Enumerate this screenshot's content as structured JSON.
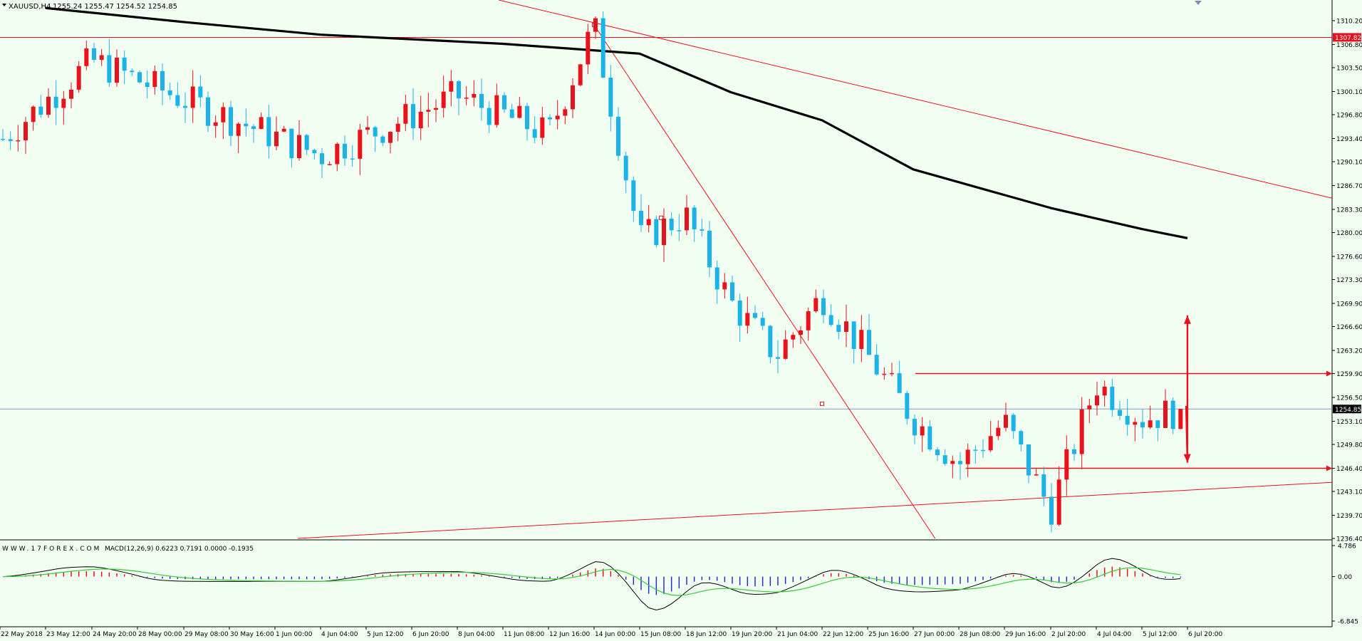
{
  "header": {
    "symbol": "XAUUSD,H4",
    "ohlc": "1255.24 1255.47 1254.52 1254.85"
  },
  "macd_header": {
    "watermark": "WWW.17FOREX.COM",
    "label": "MACD(12,26,9) 0.6223 0.7191 0.0000 -0.1935"
  },
  "colors": {
    "background": "#f3fef3",
    "bull": "#e8121c",
    "bear": "#1ab4ea",
    "ma": "#000000",
    "trend": "#e8121c",
    "current_price_line": "#8a9bc0",
    "signal": "#33cc33"
  },
  "chart_data": [
    {
      "type": "candlestick",
      "symbol": "XAUUSD",
      "timeframe": "H4",
      "ylim": [
        1236.4,
        1313.0
      ],
      "y_ticks": [
        "1310.20",
        "1306.80",
        "1303.50",
        "1300.10",
        "1296.80",
        "1293.40",
        "1290.10",
        "1286.70",
        "1283.30",
        "1280.00",
        "1276.60",
        "1273.30",
        "1269.90",
        "1266.60",
        "1263.20",
        "1259.90",
        "1256.50",
        "1253.10",
        "1249.80",
        "1246.40",
        "1243.10",
        "1239.70",
        "1236.40"
      ],
      "y_tick_values": [
        1310.2,
        1306.8,
        1303.5,
        1300.1,
        1296.8,
        1293.4,
        1290.1,
        1286.7,
        1283.3,
        1280.0,
        1276.6,
        1273.3,
        1269.9,
        1266.6,
        1263.2,
        1259.9,
        1256.5,
        1253.1,
        1249.8,
        1246.4,
        1243.1,
        1239.7,
        1236.4
      ],
      "x_ticks": [
        "22 May 2018",
        "23 May 12:00",
        "24 May 20:00",
        "28 May 00:00",
        "29 May 08:00",
        "30 May 16:00",
        "1 Jun 00:00",
        "4 Jun 04:00",
        "5 Jun 12:00",
        "6 Jun 20:00",
        "8 Jun 04:00",
        "11 Jun 08:00",
        "12 Jun 16:00",
        "14 Jun 00:00",
        "15 Jun 08:00",
        "18 Jun 12:00",
        "19 Jun 20:00",
        "21 Jun 04:00",
        "22 Jun 12:00",
        "25 Jun 16:00",
        "27 Jun 00:00",
        "28 Jun 08:00",
        "29 Jun 16:00",
        "2 Jul 20:00",
        "4 Jul 04:00",
        "5 Jul 12:00",
        "6 Jul 20:00"
      ],
      "price_labels": {
        "resistance": {
          "text": "1307.82",
          "value": 1307.82
        },
        "current": {
          "text": "1254.85",
          "value": 1254.85
        }
      },
      "key_points": [
        {
          "x": "22 May 2018",
          "y": 1293.0
        },
        {
          "x": "24 May 20:00",
          "y": 1304.5
        },
        {
          "x": "29 May 08:00",
          "y": 1299.0
        },
        {
          "x": "4 Jun 04:00",
          "y": 1291.0
        },
        {
          "x": "8 Jun 04:00",
          "y": 1299.5
        },
        {
          "x": "12 Jun 16:00",
          "y": 1294.0
        },
        {
          "x": "14 Jun 00:00",
          "y": 1309.5
        },
        {
          "x": "15 Jun 08:00",
          "y": 1279.0
        },
        {
          "x": "18 Jun 12:00",
          "y": 1282.5
        },
        {
          "x": "19 Jun 20:00",
          "y": 1270.0
        },
        {
          "x": "21 Jun 04:00",
          "y": 1262.5
        },
        {
          "x": "22 Jun 12:00",
          "y": 1271.0
        },
        {
          "x": "25 Jun 16:00",
          "y": 1262.5
        },
        {
          "x": "27 Jun 00:00",
          "y": 1253.5
        },
        {
          "x": "28 Jun 08:00",
          "y": 1247.0
        },
        {
          "x": "29 Jun 16:00",
          "y": 1253.0
        },
        {
          "x": "2 Jul 20:00",
          "y": 1240.5
        },
        {
          "x": "4 Jul 04:00",
          "y": 1258.5
        },
        {
          "x": "5 Jul 12:00",
          "y": 1253.5
        },
        {
          "x": "6 Jul 20:00",
          "y": 1254.85
        }
      ],
      "moving_average": [
        {
          "x": "23 May 12:00",
          "y": 1312.0
        },
        {
          "x": "29 May 08:00",
          "y": 1310.0
        },
        {
          "x": "4 Jun 04:00",
          "y": 1308.2
        },
        {
          "x": "11 Jun 08:00",
          "y": 1306.9
        },
        {
          "x": "15 Jun 08:00",
          "y": 1305.5
        },
        {
          "x": "19 Jun 20:00",
          "y": 1300.0
        },
        {
          "x": "22 Jun 12:00",
          "y": 1296.0
        },
        {
          "x": "27 Jun 00:00",
          "y": 1289.0
        },
        {
          "x": "2 Jul 20:00",
          "y": 1283.5
        },
        {
          "x": "5 Jul 12:00",
          "y": 1280.5
        },
        {
          "x": "6 Jul 20:00",
          "y": 1279.2
        }
      ],
      "horizontal_levels": [
        1307.82,
        1259.9,
        1246.4
      ],
      "current_price": 1254.85
    },
    {
      "type": "macd",
      "params": "12,26,9",
      "ylim": [
        -6.845,
        4.786
      ],
      "y_ticks": [
        "4.786",
        "0.00",
        "-6.845"
      ],
      "y_tick_values": [
        4.786,
        0.0,
        -6.845
      ]
    }
  ]
}
